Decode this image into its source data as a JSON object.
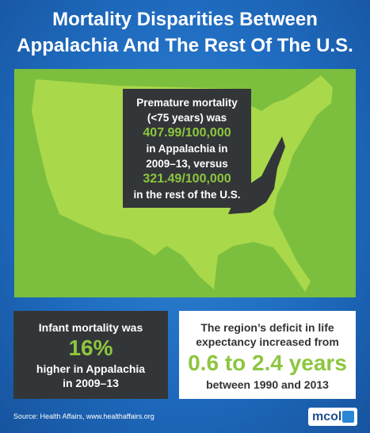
{
  "title": [
    "Mortality Disparities Between",
    "Appalachia And The Rest Of The U.S."
  ],
  "map_callout": {
    "lines": [
      "Premature mortality",
      "(<75 years) was"
    ],
    "value1": "407.99/100,000",
    "middle": [
      "in Appalachia in",
      "2009–13, versus"
    ],
    "value2": "321.49/100,000",
    "end": "in the rest of the U.S."
  },
  "left_box": {
    "intro": "Infant mortality was",
    "value": "16%",
    "lines": [
      "higher in Appalachia",
      "in 2009–13"
    ]
  },
  "right_box": {
    "lines": [
      "The region’s deficit in life",
      "expectancy increased from"
    ],
    "value": "0.6 to 2.4 years",
    "end": "between 1990 and 2013"
  },
  "source": "Source:  Health Affairs, www.healthaffairs.org",
  "logo": "mcol"
}
